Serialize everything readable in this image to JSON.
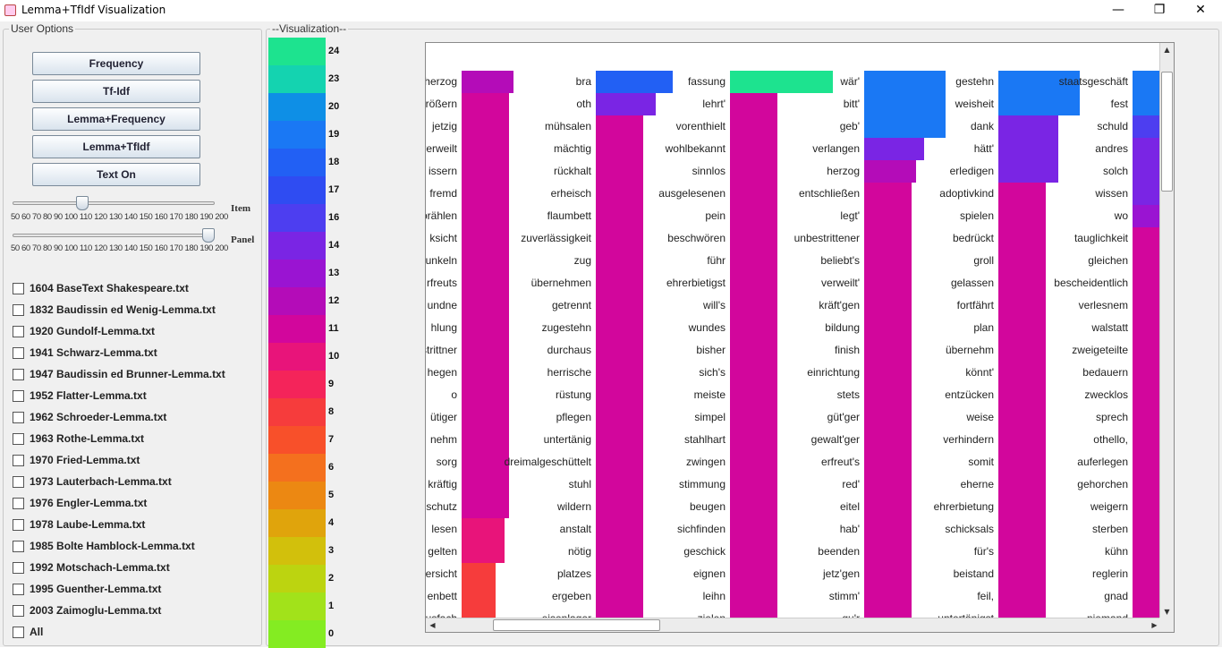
{
  "window": {
    "title": "Lemma+TfIdf Visualization",
    "minimize_glyph": "—",
    "maximize_glyph": "❐",
    "close_glyph": "✕"
  },
  "options": {
    "legend": "User Options",
    "buttons": [
      "Frequency",
      "Tf-Idf",
      "Lemma+Frequency",
      "Lemma+TfIdf",
      "Text On"
    ],
    "item_slider": {
      "label": "Item",
      "ticks": "50 60 70 80 90 100 110 120 130 140 150 160 170 180 190 200",
      "value": 100
    },
    "panel_slider": {
      "label": "Panel",
      "ticks": "50 60 70 80 90 100 110 120 130 140 150 160 170 180 190 200",
      "value": 200
    },
    "files": [
      "1604 BaseText Shakespeare.txt",
      "1832 Baudissin ed Wenig-Lemma.txt",
      "1920 Gundolf-Lemma.txt",
      "1941 Schwarz-Lemma.txt",
      "1947 Baudissin ed Brunner-Lemma.txt",
      "1952 Flatter-Lemma.txt",
      "1962 Schroeder-Lemma.txt",
      "1963 Rothe-Lemma.txt",
      "1970 Fried-Lemma.txt",
      "1973 Lauterbach-Lemma.txt",
      "1976 Engler-Lemma.txt",
      "1978 Laube-Lemma.txt",
      "1985 Bolte Hamblock-Lemma.txt",
      "1992 Motschach-Lemma.txt",
      "1995 Guenther-Lemma.txt",
      "2003 Zaimoglu-Lemma.txt",
      "All"
    ]
  },
  "visualization": {
    "legend": "--Visualization--",
    "scale": [
      {
        "value": "24",
        "color": "#1de38f"
      },
      {
        "value": "23",
        "color": "#14d3b0"
      },
      {
        "value": "20",
        "color": "#0e8fe6"
      },
      {
        "value": "19",
        "color": "#1a78f4"
      },
      {
        "value": "18",
        "color": "#2260f4"
      },
      {
        "value": "17",
        "color": "#2f4cf2"
      },
      {
        "value": "16",
        "color": "#4d3ef0"
      },
      {
        "value": "14",
        "color": "#7a25e4"
      },
      {
        "value": "13",
        "color": "#9a14d2"
      },
      {
        "value": "12",
        "color": "#b40cb8"
      },
      {
        "value": "11",
        "color": "#d2069c"
      },
      {
        "value": "10",
        "color": "#e8147a"
      },
      {
        "value": "9",
        "color": "#f4245a"
      },
      {
        "value": "8",
        "color": "#f63c3c"
      },
      {
        "value": "7",
        "color": "#f8502a"
      },
      {
        "value": "6",
        "color": "#f4701e"
      },
      {
        "value": "5",
        "color": "#ec8812"
      },
      {
        "value": "4",
        "color": "#e0a40c"
      },
      {
        "value": "3",
        "color": "#d2c00c"
      },
      {
        "value": "2",
        "color": "#bcd410"
      },
      {
        "value": "1",
        "color": "#a2e21a"
      },
      {
        "value": "0",
        "color": "#84ec22"
      }
    ],
    "columns": [
      {
        "words": [
          "herzog",
          "rößern",
          "jetzig",
          "verweilt",
          "issern",
          "fremd",
          "prählen",
          "ksicht",
          "unkeln",
          "rfreuts",
          "undne",
          "hlung",
          "strittner",
          "hegen",
          "o",
          "ütiger",
          "nehm",
          "sorg",
          "kräftig",
          "schutz",
          "lesen",
          "gelten",
          "ersicht",
          "enbett",
          "usfach"
        ],
        "bars": [
          {
            "value": 12,
            "rows": 1
          },
          {
            "value": 11,
            "rows": 19
          },
          {
            "value": 10,
            "rows": 2
          },
          {
            "value": 8,
            "rows": 3
          }
        ]
      },
      {
        "words": [
          "bra",
          "oth",
          "mühsalen",
          "mächtig",
          "rückhalt",
          "erheisch",
          "flaumbett",
          "zuverlässigkeit",
          "zug",
          "übernehmen",
          "getrennt",
          "zugestehn",
          "durchaus",
          "herrische",
          "rüstung",
          "pflegen",
          "untertänig",
          "dreimalgeschüttelt",
          "stuhl",
          "wildern",
          "anstalt",
          "nötig",
          "platzes",
          "ergeben",
          "eisenlager"
        ],
        "bars": [
          {
            "value": 18,
            "rows": 1
          },
          {
            "value": 14,
            "rows": 1
          },
          {
            "value": 11,
            "rows": 23
          }
        ]
      },
      {
        "words": [
          "fassung",
          "lehrt'",
          "vorenthielt",
          "wohlbekannt",
          "sinnlos",
          "ausgelesenen",
          "pein",
          "beschwören",
          "führ",
          "ehrerbietigst",
          "will's",
          "wundes",
          "bisher",
          "sich's",
          "meiste",
          "simpel",
          "stahlhart",
          "zwingen",
          "stimmung",
          "beugen",
          "sichfinden",
          "geschick",
          "eignen",
          "leihn",
          "zielen"
        ],
        "bars": [
          {
            "value": 24,
            "rows": 1
          },
          {
            "value": 11,
            "rows": 24
          }
        ]
      },
      {
        "words": [
          "wär'",
          "bitt'",
          "geb'",
          "verlangen",
          "herzog",
          "entschließen",
          "legt'",
          "unbestrittener",
          "beliebt's",
          "verweilt'",
          "kräft'gen",
          "bildung",
          "finish",
          "einrichtung",
          "stets",
          "güt'ger",
          "gewalt'ger",
          "erfreut's",
          "red'",
          "eitel",
          "hab'",
          "beenden",
          "jetz'gen",
          "stimm'",
          "gu'r"
        ],
        "bars": [
          {
            "value": 19,
            "rows": 3
          },
          {
            "value": 14,
            "rows": 1
          },
          {
            "value": 12,
            "rows": 1
          },
          {
            "value": 11,
            "rows": 20
          }
        ]
      },
      {
        "words": [
          "gestehn",
          "weisheit",
          "dank",
          "hätt'",
          "erledigen",
          "adoptivkind",
          "spielen",
          "bedrückt",
          "groll",
          "gelassen",
          "fortfährt",
          "plan",
          "übernehm",
          "könnt'",
          "entzücken",
          "weise",
          "verhindern",
          "somit",
          "eherne",
          "ehrerbietung",
          "schicksals",
          "für's",
          "beistand",
          "feil,",
          "untertänigst"
        ],
        "bars": [
          {
            "value": 19,
            "rows": 2
          },
          {
            "value": 14,
            "rows": 3
          },
          {
            "value": 11,
            "rows": 20
          }
        ]
      },
      {
        "words": [
          "staatsgeschäft",
          "fest",
          "schuld",
          "andres",
          "solch",
          "wissen",
          "wo",
          "tauglichkeit",
          "gleichen",
          "bescheidentlich",
          "verlesnem",
          "walstatt",
          "zweigeteilte",
          "bedauern",
          "zwecklos",
          "sprech",
          "othello,",
          "auferlegen",
          "gehorchen",
          "weigern",
          "sterben",
          "kühn",
          "reglerin",
          "gnad",
          "niemand"
        ],
        "bars": [
          {
            "value": 19,
            "rows": 2
          },
          {
            "value": 16,
            "rows": 1
          },
          {
            "value": 14,
            "rows": 3
          },
          {
            "value": 13,
            "rows": 1
          },
          {
            "value": 11,
            "rows": 18
          }
        ]
      }
    ]
  }
}
